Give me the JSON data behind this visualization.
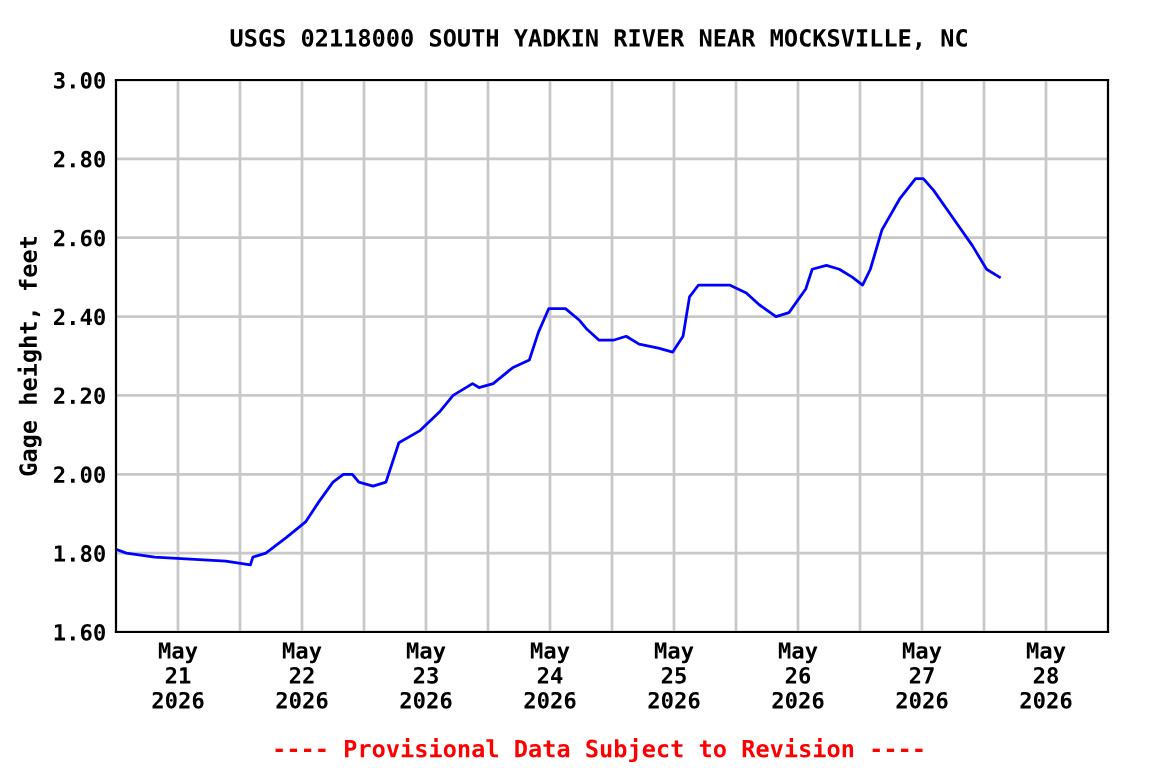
{
  "chart_data": {
    "type": "line",
    "title": "USGS 02118000 SOUTH YADKIN RIVER NEAR MOCKSVILLE, NC",
    "ylabel": "Gage height, feet",
    "annotations": [
      "---- Provisional Data Subject to Revision ----"
    ],
    "x": [
      "2026-05-21T00:00",
      "2026-05-21T02:00",
      "2026-05-21T07:30",
      "2026-05-21T21:15",
      "2026-05-22T02:00",
      "2026-05-22T02:30",
      "2026-05-22T05:00",
      "2026-05-22T09:00",
      "2026-05-22T12:45",
      "2026-05-22T15:15",
      "2026-05-22T18:00",
      "2026-05-22T20:00",
      "2026-05-22T21:45",
      "2026-05-22T23:00",
      "2026-05-23T01:45",
      "2026-05-23T04:15",
      "2026-05-23T06:45",
      "2026-05-23T10:45",
      "2026-05-23T14:45",
      "2026-05-23T17:15",
      "2026-05-23T21:00",
      "2026-05-23T22:15",
      "2026-05-24T01:00",
      "2026-05-24T04:45",
      "2026-05-24T08:00",
      "2026-05-24T09:45",
      "2026-05-24T11:45",
      "2026-05-24T15:00",
      "2026-05-24T17:45",
      "2026-05-24T19:00",
      "2026-05-24T21:30",
      "2026-05-25T00:15",
      "2026-05-25T02:45",
      "2026-05-25T05:15",
      "2026-05-25T09:00",
      "2026-05-25T11:45",
      "2026-05-25T13:45",
      "2026-05-25T15:00",
      "2026-05-25T16:45",
      "2026-05-25T22:45",
      "2026-05-26T02:00",
      "2026-05-26T04:30",
      "2026-05-26T07:45",
      "2026-05-26T10:15",
      "2026-05-26T13:30",
      "2026-05-26T14:45",
      "2026-05-26T17:30",
      "2026-05-26T20:00",
      "2026-05-26T22:30",
      "2026-05-27T00:30",
      "2026-05-27T02:00",
      "2026-05-27T04:15",
      "2026-05-27T07:45",
      "2026-05-27T10:45",
      "2026-05-27T12:15",
      "2026-05-27T14:15",
      "2026-05-27T18:00",
      "2026-05-27T21:45",
      "2026-05-28T00:30",
      "2026-05-28T03:00"
    ],
    "series": [
      {
        "color": "#0000ff",
        "values": [
          1.81,
          1.8,
          1.79,
          1.78,
          1.77,
          1.79,
          1.8,
          1.84,
          1.88,
          1.93,
          1.98,
          2.0,
          2.0,
          1.98,
          1.97,
          1.98,
          2.08,
          2.11,
          2.16,
          2.2,
          2.23,
          2.22,
          2.23,
          2.27,
          2.29,
          2.36,
          2.42,
          2.42,
          2.39,
          2.37,
          2.34,
          2.34,
          2.35,
          2.33,
          2.32,
          2.31,
          2.35,
          2.45,
          2.48,
          2.48,
          2.46,
          2.43,
          2.4,
          2.41,
          2.47,
          2.52,
          2.53,
          2.52,
          2.5,
          2.48,
          2.52,
          2.62,
          2.7,
          2.75,
          2.75,
          2.72,
          2.65,
          2.58,
          2.52,
          2.5
        ]
      }
    ],
    "xlim": [
      "2026-05-21T00:00",
      "2026-05-29T00:00"
    ],
    "xticks": [
      {
        "value": "2026-05-21T12:00",
        "label": "May\n21\n2026"
      },
      {
        "value": "2026-05-22T00:00",
        "label": null
      },
      {
        "value": "2026-05-22T12:00",
        "label": "May\n22\n2026"
      },
      {
        "value": "2026-05-23T00:00",
        "label": null
      },
      {
        "value": "2026-05-23T12:00",
        "label": "May\n23\n2026"
      },
      {
        "value": "2026-05-24T00:00",
        "label": null
      },
      {
        "value": "2026-05-24T12:00",
        "label": "May\n24\n2026"
      },
      {
        "value": "2026-05-25T00:00",
        "label": null
      },
      {
        "value": "2026-05-25T12:00",
        "label": "May\n25\n2026"
      },
      {
        "value": "2026-05-26T00:00",
        "label": null
      },
      {
        "value": "2026-05-26T12:00",
        "label": "May\n26\n2026"
      },
      {
        "value": "2026-05-27T00:00",
        "label": null
      },
      {
        "value": "2026-05-27T12:00",
        "label": "May\n27\n2026"
      },
      {
        "value": "2026-05-28T00:00",
        "label": null
      },
      {
        "value": "2026-05-28T12:00",
        "label": "May\n28\n2026"
      }
    ],
    "ylim": [
      1.6,
      3.0
    ],
    "yticks": [
      {
        "value": 1.6,
        "label": "1.60"
      },
      {
        "value": 1.8,
        "label": "1.80"
      },
      {
        "value": 2.0,
        "label": "2.00"
      },
      {
        "value": 2.2,
        "label": "2.20"
      },
      {
        "value": 2.4,
        "label": "2.40"
      },
      {
        "value": 2.6,
        "label": "2.60"
      },
      {
        "value": 2.8,
        "label": "2.80"
      },
      {
        "value": 3.0,
        "label": "3.00"
      }
    ],
    "grid": true,
    "marker": "none",
    "line_style": "solid"
  }
}
